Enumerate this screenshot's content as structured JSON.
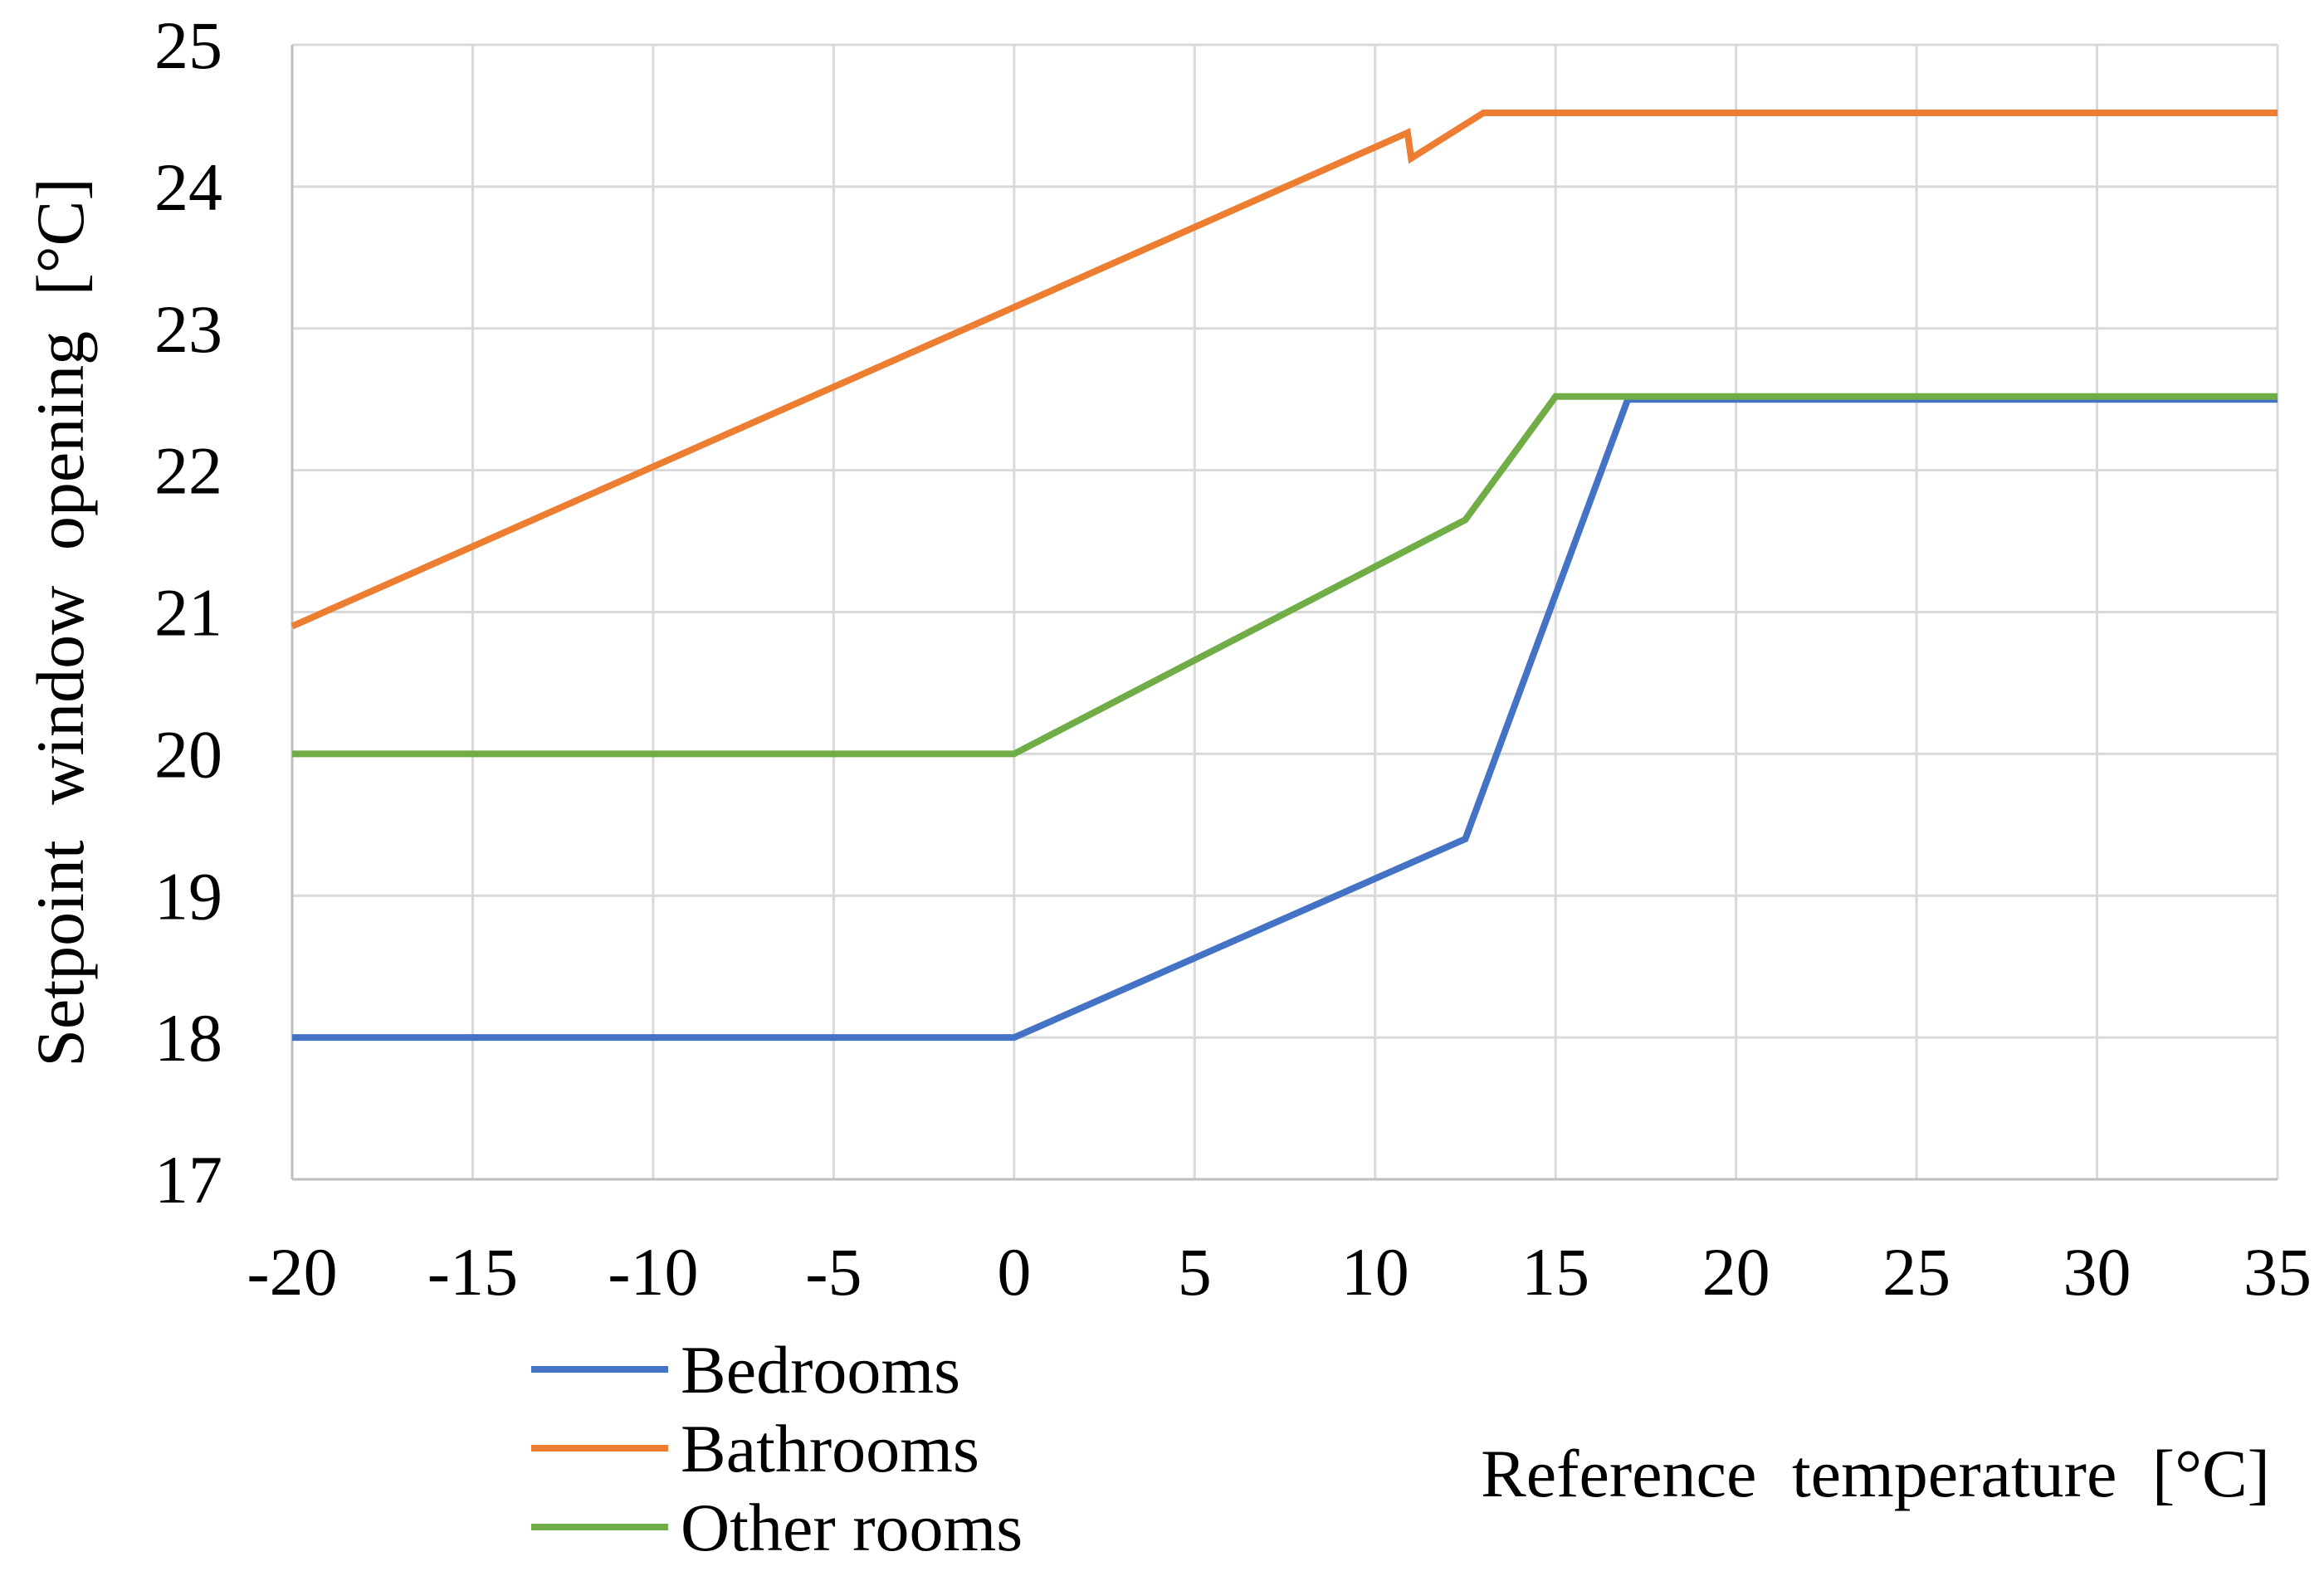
{
  "chart_data": {
    "type": "line",
    "title": "",
    "xlabel": "Reference temperature [°C]",
    "ylabel": "Setpoint window opening [°C]",
    "xlim": [
      -20,
      35
    ],
    "ylim": [
      17,
      25
    ],
    "xticks": [
      -20,
      -15,
      -10,
      -5,
      0,
      5,
      10,
      15,
      20,
      25,
      30,
      35
    ],
    "yticks": [
      17,
      18,
      19,
      20,
      21,
      22,
      23,
      24,
      25
    ],
    "grid": true,
    "legend_position": "bottom-left",
    "series": [
      {
        "name": "Bedrooms",
        "color": "#4472C4",
        "points": [
          [
            -20,
            18
          ],
          [
            0,
            18
          ],
          [
            12.5,
            19.4
          ],
          [
            17,
            22.5
          ],
          [
            35,
            22.5
          ]
        ]
      },
      {
        "name": "Bathrooms",
        "color": "#ED7D31",
        "points": [
          [
            -20,
            20.9
          ],
          [
            0,
            23.15
          ],
          [
            10.9,
            24.38
          ],
          [
            11,
            24.2
          ],
          [
            13,
            24.52
          ],
          [
            35,
            24.52
          ]
        ]
      },
      {
        "name": "Other rooms",
        "color": "#70AD47",
        "points": [
          [
            -20,
            20
          ],
          [
            0,
            20
          ],
          [
            12.5,
            21.65
          ],
          [
            15,
            22.52
          ],
          [
            35,
            22.52
          ]
        ]
      }
    ]
  }
}
